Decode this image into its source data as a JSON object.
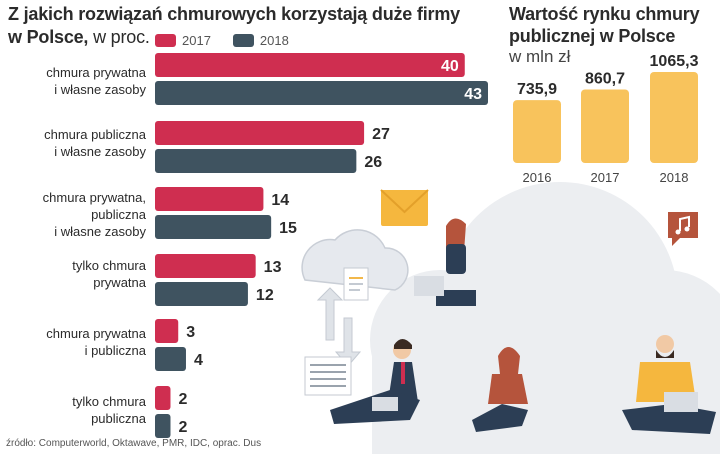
{
  "main_title": "Z jakich rozwiązań chmurowych korzystają duże firmy",
  "main_title_line2": "w Polsce,",
  "main_unit": "w proc.",
  "legend": [
    {
      "label": "2017",
      "color": "#cf2e50"
    },
    {
      "label": "2018",
      "color": "#3f5360"
    }
  ],
  "categories": [
    {
      "label": "chmura prywatna\ni własne zasoby"
    },
    {
      "label": "chmura publiczna\ni własne zasoby"
    },
    {
      "label": "chmura prywatna,\npubliczna\ni własne zasoby"
    },
    {
      "label": "tylko chmura\nprywatna"
    },
    {
      "label": "chmura prywatna\ni publiczna"
    },
    {
      "label": "tylko chmura\npubliczna"
    }
  ],
  "market_title": "Wartość rynku chmury publicznej w Polsce",
  "market_title_line1": "Wartość rynku chmury",
  "market_title_line2": "publicznej w Polsce",
  "market_unit": "w mln zł",
  "source": "źródło: Computerworld, Oktawave, PMR, IDC, oprac. Dus",
  "chart_data": [
    {
      "type": "bar",
      "orientation": "horizontal",
      "title": "Z jakich rozwiązań chmurowych korzystają duże firmy w Polsce, w proc.",
      "categories": [
        "chmura prywatna i własne zasoby",
        "chmura publiczna i własne zasoby",
        "chmura prywatna, publiczna i własne zasoby",
        "tylko chmura prywatna",
        "chmura prywatna i publiczna",
        "tylko chmura publiczna"
      ],
      "series": [
        {
          "name": "2017",
          "values": [
            40,
            27,
            14,
            13,
            3,
            2
          ],
          "color": "#cf2e50"
        },
        {
          "name": "2018",
          "values": [
            43,
            26,
            15,
            12,
            4,
            2
          ],
          "color": "#3f5360"
        }
      ],
      "xlim": [
        0,
        43
      ],
      "grid": false,
      "legend": "top"
    },
    {
      "type": "bar",
      "title": "Wartość rynku chmury publicznej w Polsce",
      "unit": "w mln zł",
      "categories": [
        "2016",
        "2017",
        "2018"
      ],
      "values": [
        735.9,
        860.7,
        1065.3
      ],
      "value_labels": [
        "735,9",
        "860,7",
        "1065,3"
      ],
      "color": "#f8c35c",
      "grid": false
    }
  ]
}
